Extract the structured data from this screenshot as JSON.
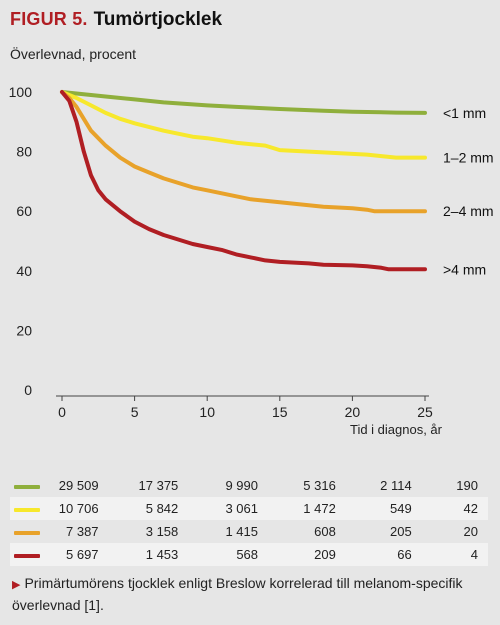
{
  "figure": {
    "label": "FIGUR 5.",
    "title": "Tumörtjocklek",
    "caption": "Primärtumörens tjocklek enligt Breslow korrelerad till melanom-specifik överlevnad [1]."
  },
  "chart_data": {
    "type": "line",
    "title": "Tumörtjocklek",
    "ylabel": "Överlevnad, procent",
    "xlabel": "Tid i diagnos, år",
    "xlim": [
      0,
      25
    ],
    "ylim": [
      0,
      100
    ],
    "xticks": [
      0,
      5,
      10,
      15,
      20,
      25
    ],
    "yticks": [
      0,
      20,
      40,
      60,
      80,
      100
    ],
    "grid": false,
    "series": [
      {
        "name": "<1 mm",
        "color": "#8faf3c",
        "points": [
          [
            0,
            100
          ],
          [
            1,
            99.5
          ],
          [
            2,
            99
          ],
          [
            3,
            98.5
          ],
          [
            5,
            97.5
          ],
          [
            7,
            96.5
          ],
          [
            10,
            95.5
          ],
          [
            12,
            95
          ],
          [
            15,
            94.3
          ],
          [
            18,
            93.7
          ],
          [
            20,
            93.4
          ],
          [
            23,
            93.1
          ],
          [
            25,
            93
          ]
        ],
        "at_risk": [
          "29 509",
          "17 375",
          "9 990",
          "5 316",
          "2 114",
          "190"
        ]
      },
      {
        "name": "1–2 mm",
        "color": "#f7e82c",
        "points": [
          [
            0,
            100
          ],
          [
            1,
            98
          ],
          [
            2,
            95.5
          ],
          [
            3,
            93
          ],
          [
            4,
            91
          ],
          [
            5,
            89.5
          ],
          [
            7,
            87
          ],
          [
            9,
            85
          ],
          [
            10,
            84.5
          ],
          [
            12,
            83
          ],
          [
            14,
            82
          ],
          [
            15,
            80.5
          ],
          [
            17,
            80
          ],
          [
            19,
            79.5
          ],
          [
            21,
            79
          ],
          [
            22,
            78.5
          ],
          [
            23,
            78
          ],
          [
            25,
            78
          ]
        ],
        "at_risk": [
          "10 706",
          "5 842",
          "3 061",
          "1 472",
          "549",
          "42"
        ]
      },
      {
        "name": "2–4 mm",
        "color": "#e8a22a",
        "points": [
          [
            0,
            100
          ],
          [
            0.5,
            98
          ],
          [
            1,
            95
          ],
          [
            2,
            87
          ],
          [
            3,
            82
          ],
          [
            4,
            78
          ],
          [
            5,
            75
          ],
          [
            6,
            73
          ],
          [
            7,
            71
          ],
          [
            8,
            69.5
          ],
          [
            9,
            68
          ],
          [
            10,
            67
          ],
          [
            11,
            66
          ],
          [
            12,
            65
          ],
          [
            13,
            64
          ],
          [
            15,
            63
          ],
          [
            17,
            62
          ],
          [
            18,
            61.5
          ],
          [
            20,
            61
          ],
          [
            21,
            60.5
          ],
          [
            21.5,
            60
          ],
          [
            23,
            60
          ],
          [
            25,
            60
          ]
        ],
        "at_risk": [
          "7 387",
          "3 158",
          "1 415",
          "608",
          "205",
          "20"
        ]
      },
      {
        "name": ">4 mm",
        "color": "#b01e23",
        "points": [
          [
            0,
            100
          ],
          [
            0.5,
            97
          ],
          [
            1,
            90
          ],
          [
            1.5,
            80
          ],
          [
            2,
            72
          ],
          [
            2.5,
            67
          ],
          [
            3,
            64
          ],
          [
            4,
            60
          ],
          [
            5,
            56.5
          ],
          [
            6,
            54
          ],
          [
            7,
            52
          ],
          [
            8,
            50.5
          ],
          [
            9,
            49
          ],
          [
            10,
            48
          ],
          [
            11,
            47
          ],
          [
            12,
            45.5
          ],
          [
            13,
            44.5
          ],
          [
            14,
            43.5
          ],
          [
            15,
            43
          ],
          [
            17,
            42.5
          ],
          [
            18,
            42
          ],
          [
            20,
            41.8
          ],
          [
            21,
            41.5
          ],
          [
            22,
            41
          ],
          [
            22.5,
            40.5
          ],
          [
            25,
            40.5
          ]
        ],
        "at_risk": [
          "5 697",
          "1 453",
          "568",
          "209",
          "66",
          "4"
        ]
      }
    ]
  }
}
